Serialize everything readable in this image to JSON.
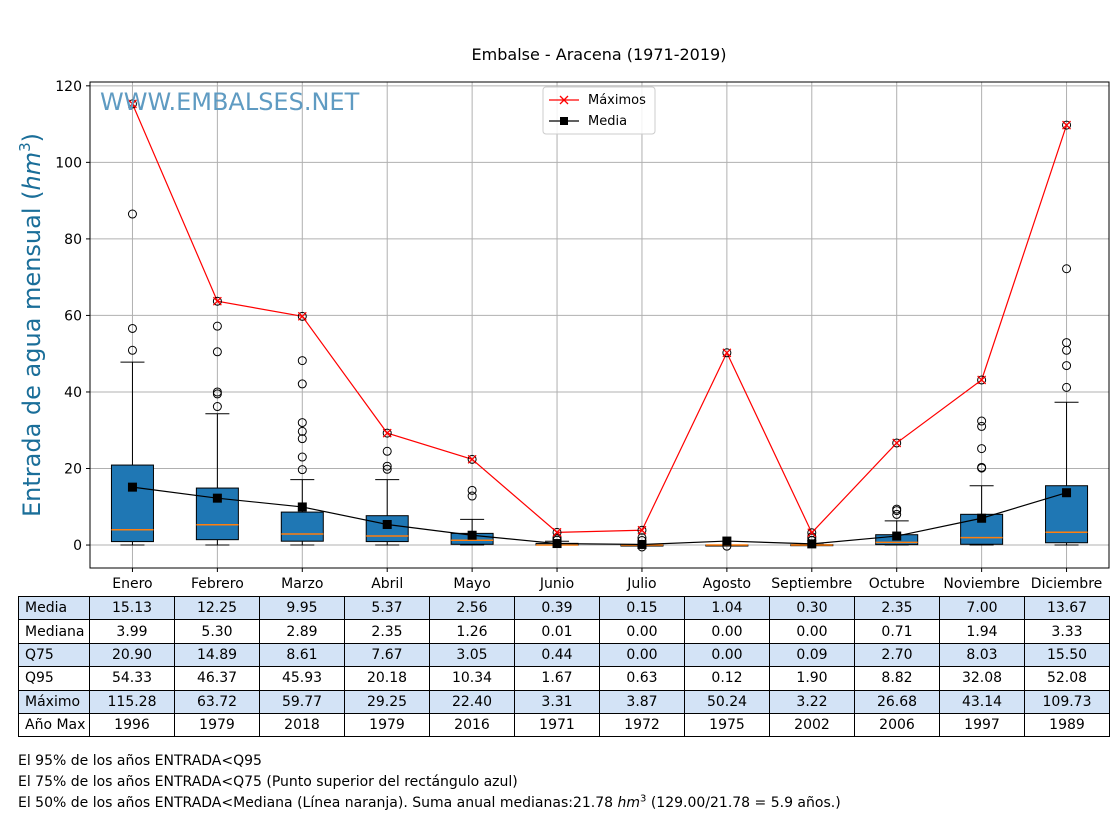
{
  "chart_data": {
    "type": "box",
    "title": "Embalse - Aracena (1971-2019)",
    "watermark": "WWW.EMBALSES.NET",
    "ylabel": "Entrada de agua mensual",
    "ylabel_unit": "hm",
    "ylabel_unit_exp": "3",
    "ylim": [
      -6,
      121
    ],
    "yticks": [
      0,
      20,
      40,
      60,
      80,
      100,
      120
    ],
    "grid": true,
    "legend": {
      "position": "top-center",
      "entries": [
        "Máximos",
        "Media"
      ]
    },
    "categories": [
      "Enero",
      "Febrero",
      "Marzo",
      "Abril",
      "Mayo",
      "Junio",
      "Julio",
      "Agosto",
      "Septiembre",
      "Octubre",
      "Noviembre",
      "Diciembre"
    ],
    "boxes": {
      "q25": [
        0.9,
        1.4,
        1.0,
        0.9,
        0.2,
        0.0,
        0.0,
        0.0,
        0.0,
        0.1,
        0.2,
        0.6
      ],
      "median": [
        3.99,
        5.3,
        2.89,
        2.35,
        1.26,
        0.01,
        0.0,
        0.0,
        0.0,
        0.71,
        1.94,
        3.33
      ],
      "q75": [
        20.9,
        14.89,
        8.61,
        7.67,
        3.05,
        0.44,
        0.0,
        0.0,
        0.09,
        2.7,
        8.03,
        15.5
      ],
      "whisker_low": [
        0.0,
        0.0,
        0.0,
        0.0,
        0.0,
        0.0,
        0.0,
        0.0,
        0.0,
        0.0,
        0.0,
        0.0
      ],
      "whisker_high": [
        47.8,
        34.3,
        17.1,
        17.1,
        6.7,
        1.0,
        0.0,
        0.0,
        0.2,
        6.3,
        15.5,
        37.3
      ],
      "outliers": [
        [
          56.6,
          50.9,
          86.5
        ],
        [
          36.2,
          39.5,
          40.0,
          50.5,
          57.2
        ],
        [
          19.7,
          23.0,
          27.8,
          29.7,
          32.0,
          42.1,
          48.2
        ],
        [
          19.8,
          20.6,
          24.5
        ],
        [
          12.8,
          14.3
        ],
        [
          1.3,
          1.7,
          2.0
        ],
        [
          -0.5,
          1.2,
          1.9
        ],
        [
          -0.3
        ],
        [
          1.2,
          1.8,
          2.2
        ],
        [
          8.0,
          9.0,
          9.4
        ],
        [
          20.1,
          20.3,
          25.2,
          31.0,
          32.4
        ],
        [
          41.2,
          46.9,
          50.9,
          52.9,
          72.2
        ]
      ]
    },
    "series": [
      {
        "name": "Máximos",
        "color": "#ff0000",
        "values": [
          115.28,
          63.72,
          59.77,
          29.25,
          22.4,
          3.31,
          3.87,
          50.24,
          3.22,
          26.68,
          43.14,
          109.73
        ]
      },
      {
        "name": "Media",
        "color": "#000000",
        "values": [
          15.13,
          12.25,
          9.95,
          5.37,
          2.56,
          0.39,
          0.15,
          1.04,
          0.3,
          2.35,
          7.0,
          13.67
        ]
      }
    ],
    "colors": {
      "box": "#1f77b4",
      "median": "#ff7f0e",
      "grid": "#b0b0b0",
      "watermark": "#5f9bc2"
    }
  },
  "table": {
    "rows": [
      {
        "label": "Media",
        "values": [
          "15.13",
          "12.25",
          "9.95",
          "5.37",
          "2.56",
          "0.39",
          "0.15",
          "1.04",
          "0.30",
          "2.35",
          "7.00",
          "13.67"
        ]
      },
      {
        "label": "Mediana",
        "values": [
          "3.99",
          "5.30",
          "2.89",
          "2.35",
          "1.26",
          "0.01",
          "0.00",
          "0.00",
          "0.00",
          "0.71",
          "1.94",
          "3.33"
        ]
      },
      {
        "label": "Q75",
        "values": [
          "20.90",
          "14.89",
          "8.61",
          "7.67",
          "3.05",
          "0.44",
          "0.00",
          "0.00",
          "0.09",
          "2.70",
          "8.03",
          "15.50"
        ]
      },
      {
        "label": "Q95",
        "values": [
          "54.33",
          "46.37",
          "45.93",
          "20.18",
          "10.34",
          "1.67",
          "0.63",
          "0.12",
          "1.90",
          "8.82",
          "32.08",
          "52.08"
        ]
      },
      {
        "label": "Máximo",
        "values": [
          "115.28",
          "63.72",
          "59.77",
          "29.25",
          "22.40",
          "3.31",
          "3.87",
          "50.24",
          "3.22",
          "26.68",
          "43.14",
          "109.73"
        ]
      },
      {
        "label": "Año Max",
        "values": [
          "1996",
          "1979",
          "2018",
          "1979",
          "2016",
          "1971",
          "1972",
          "1975",
          "2002",
          "2006",
          "1997",
          "1989"
        ]
      }
    ],
    "shaded_color": "#d3e3f6"
  },
  "notes": {
    "line1": "El 95% de los años ENTRADA<Q95",
    "line2": "El 75% de los años ENTRADA<Q75 (Punto superior del rectángulo azul)",
    "line3_a": "El 50% de los años ENTRADA<Mediana (Línea naranja). Suma anual medianas:21.78 ",
    "line3_unit": "hm",
    "line3_exp": "3",
    "line3_b": " (129.00/21.78 = 5.9 años.)"
  }
}
